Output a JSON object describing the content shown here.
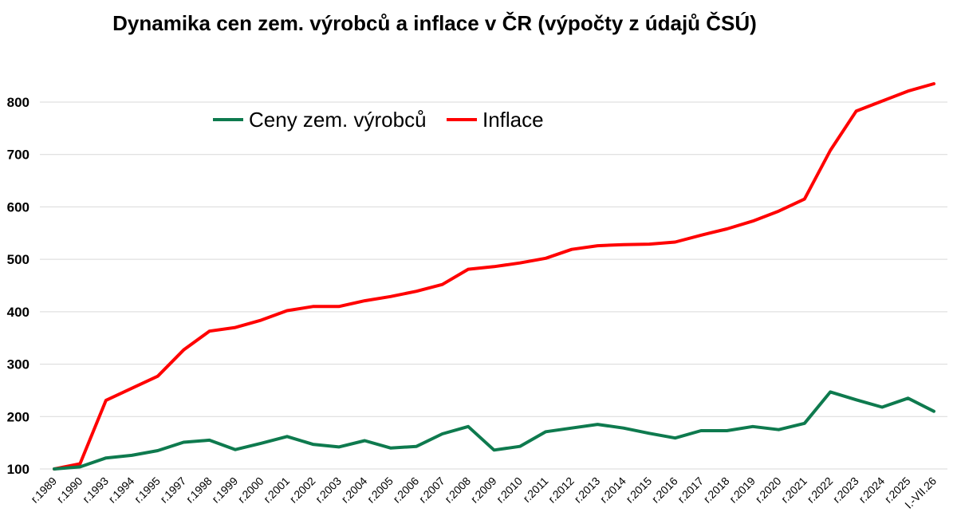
{
  "chart_data": {
    "type": "line",
    "title": "Dynamika cen zem. výrobců a inflace v ČR (výpočty z údajů ČSÚ)",
    "xlabel": "",
    "ylabel": "",
    "ylim": [
      100,
      860
    ],
    "yticks": [
      100,
      200,
      300,
      400,
      500,
      600,
      700,
      800
    ],
    "grid": true,
    "legend": "top-center",
    "categories": [
      "r.1989",
      "r.1990",
      "r.1993",
      "r.1994",
      "r.1995",
      "r.1997",
      "r.1998",
      "r.1999",
      "r.2000",
      "r.2001",
      "r.2002",
      "r.2003",
      "r.2004",
      "r.2005",
      "r.2006",
      "r.2007",
      "r.2008",
      "r.2009",
      "r.2010",
      "r.2011",
      "r.2012",
      "r.2013",
      "r.2014",
      "r.2015",
      "r.2016",
      "r.2017",
      "r.2018",
      "r.2019",
      "r.2020",
      "r.2021",
      "r.2022",
      "r.2023",
      "r.2024",
      "r.2025",
      "I.-VII.26"
    ],
    "series": [
      {
        "name": "Ceny zem. výrobců",
        "color": "#0e7a4e",
        "values": [
          100,
          104,
          121,
          126,
          135,
          151,
          155,
          137,
          149,
          162,
          147,
          142,
          154,
          140,
          143,
          167,
          181,
          136,
          143,
          171,
          178,
          185,
          178,
          168,
          159,
          173,
          173,
          181,
          175,
          187,
          247,
          232,
          218,
          235,
          210
        ]
      },
      {
        "name": "Inflace",
        "color": "#ff0000",
        "values": [
          100,
          110,
          231,
          254,
          277,
          327,
          363,
          370,
          384,
          402,
          410,
          410,
          421,
          429,
          439,
          452,
          481,
          486,
          493,
          502,
          519,
          526,
          528,
          529,
          533,
          546,
          558,
          573,
          592,
          615,
          708,
          783,
          802,
          821,
          835
        ]
      }
    ]
  }
}
